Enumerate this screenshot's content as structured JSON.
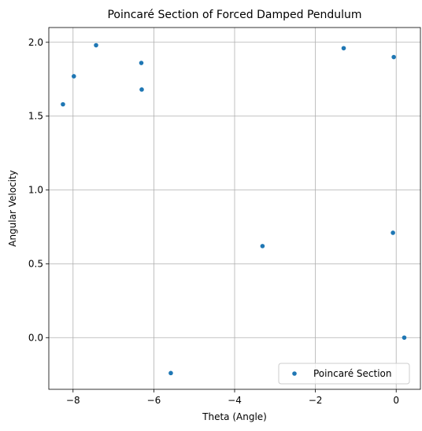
{
  "chart_data": {
    "type": "scatter",
    "title": "Poincaré Section of Forced Damped Pendulum",
    "xlabel": "Theta (Angle)",
    "ylabel": "Angular Velocity",
    "xlim": [
      -8.6,
      0.6
    ],
    "ylim": [
      -0.35,
      2.1
    ],
    "xticks": [
      {
        "value": -8,
        "label": "−8"
      },
      {
        "value": -6,
        "label": "−6"
      },
      {
        "value": -4,
        "label": "−4"
      },
      {
        "value": -2,
        "label": "−2"
      },
      {
        "value": 0,
        "label": "0"
      }
    ],
    "yticks": [
      {
        "value": 0.0,
        "label": "0.0"
      },
      {
        "value": 0.5,
        "label": "0.5"
      },
      {
        "value": 1.0,
        "label": "1.0"
      },
      {
        "value": 1.5,
        "label": "1.5"
      },
      {
        "value": 2.0,
        "label": "2.0"
      }
    ],
    "grid": true,
    "legend_position": "lower-right",
    "series": [
      {
        "name": "Poincaré Section",
        "color": "#1f77b4",
        "points": [
          {
            "x": -8.25,
            "y": 1.58
          },
          {
            "x": -7.98,
            "y": 1.77
          },
          {
            "x": -7.43,
            "y": 1.98
          },
          {
            "x": -6.31,
            "y": 1.86
          },
          {
            "x": -6.3,
            "y": 1.68
          },
          {
            "x": -5.58,
            "y": -0.24
          },
          {
            "x": -3.31,
            "y": 0.62
          },
          {
            "x": -1.3,
            "y": 1.96
          },
          {
            "x": -0.06,
            "y": 1.9
          },
          {
            "x": -0.08,
            "y": 0.71
          },
          {
            "x": 0.2,
            "y": 0.0
          }
        ]
      }
    ]
  }
}
